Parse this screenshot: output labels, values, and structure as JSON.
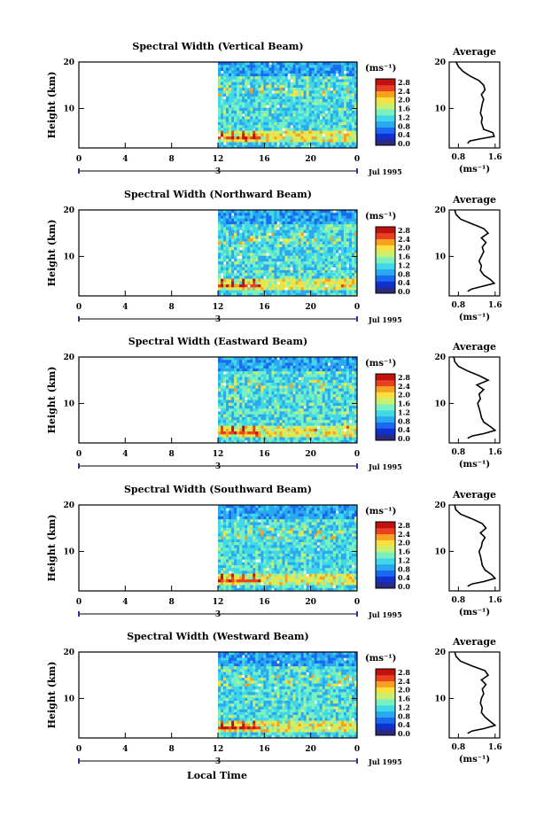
{
  "chart_data": [
    {
      "type": "heatmap",
      "title": "Spectral Width (Vertical Beam)",
      "ylabel": "Height (km)",
      "xticks": [
        "0",
        "4",
        "8",
        "12",
        "16",
        "20",
        "0"
      ],
      "yticks": [
        "20",
        "10"
      ],
      "xlim": [
        0,
        24
      ],
      "ylim": [
        1.5,
        20
      ],
      "data_start_hour": 12,
      "day_label": "3",
      "date_label": "Jul 1995",
      "colorbar": {
        "unit": "(ms⁻¹)",
        "ticks": [
          "2.8",
          "2.4",
          "2.0",
          "1.6",
          "1.2",
          "0.8",
          "0.4",
          "0.0"
        ]
      },
      "profile": {
        "title": "Average",
        "xlabel": "(ms⁻¹)",
        "xticks": [
          "0.8",
          "1.6"
        ],
        "yticks": [
          "20",
          "10"
        ],
        "xlim": [
          0.6,
          1.7
        ],
        "points": [
          [
            1.0,
            2.5
          ],
          [
            1.05,
            3.0
          ],
          [
            1.25,
            3.4
          ],
          [
            1.58,
            4.0
          ],
          [
            1.55,
            4.8
          ],
          [
            1.35,
            5.5
          ],
          [
            1.3,
            7
          ],
          [
            1.32,
            8
          ],
          [
            1.28,
            9
          ],
          [
            1.3,
            10
          ],
          [
            1.32,
            11
          ],
          [
            1.35,
            12
          ],
          [
            1.3,
            13
          ],
          [
            1.38,
            14
          ],
          [
            1.35,
            15
          ],
          [
            1.25,
            16
          ],
          [
            1.05,
            17
          ],
          [
            0.9,
            18
          ],
          [
            0.8,
            19
          ],
          [
            0.75,
            20
          ]
        ]
      }
    },
    {
      "type": "heatmap",
      "title": "Spectral Width (Northward Beam)",
      "ylabel": "Height (km)",
      "xticks": [
        "0",
        "4",
        "8",
        "12",
        "16",
        "20",
        "0"
      ],
      "yticks": [
        "20",
        "10"
      ],
      "xlim": [
        0,
        24
      ],
      "ylim": [
        1.5,
        20
      ],
      "data_start_hour": 12,
      "day_label": "3",
      "date_label": "Jul 1995",
      "colorbar": {
        "unit": "(ms⁻¹)",
        "ticks": [
          "2.8",
          "2.4",
          "2.0",
          "1.6",
          "1.2",
          "0.8",
          "0.4",
          "0.0"
        ]
      },
      "profile": {
        "title": "Average",
        "xlabel": "(ms⁻¹)",
        "xticks": [
          "0.8",
          "1.6"
        ],
        "yticks": [
          "20",
          "10"
        ],
        "xlim": [
          0.6,
          1.7
        ],
        "points": [
          [
            1.0,
            2.5
          ],
          [
            1.1,
            3.0
          ],
          [
            1.3,
            3.5
          ],
          [
            1.58,
            4.2
          ],
          [
            1.5,
            5.0
          ],
          [
            1.35,
            6
          ],
          [
            1.28,
            7
          ],
          [
            1.3,
            8
          ],
          [
            1.25,
            9
          ],
          [
            1.3,
            10
          ],
          [
            1.35,
            11
          ],
          [
            1.32,
            12
          ],
          [
            1.4,
            13
          ],
          [
            1.3,
            14
          ],
          [
            1.45,
            15
          ],
          [
            1.35,
            16
          ],
          [
            1.1,
            17
          ],
          [
            0.85,
            18
          ],
          [
            0.75,
            19
          ],
          [
            0.72,
            20
          ]
        ]
      }
    },
    {
      "type": "heatmap",
      "title": "Spectral Width (Eastward Beam)",
      "ylabel": "Height (km)",
      "xticks": [
        "0",
        "4",
        "8",
        "12",
        "16",
        "20",
        "0"
      ],
      "yticks": [
        "20",
        "10"
      ],
      "xlim": [
        0,
        24
      ],
      "ylim": [
        1.5,
        20
      ],
      "data_start_hour": 12,
      "day_label": "3",
      "date_label": "Jul 1995",
      "colorbar": {
        "unit": "(ms⁻¹)",
        "ticks": [
          "2.8",
          "2.4",
          "2.0",
          "1.6",
          "1.2",
          "0.8",
          "0.4",
          "0.0"
        ]
      },
      "profile": {
        "title": "Average",
        "xlabel": "(ms⁻¹)",
        "xticks": [
          "0.8",
          "1.6"
        ],
        "yticks": [
          "20",
          "10"
        ],
        "xlim": [
          0.6,
          1.7
        ],
        "points": [
          [
            1.0,
            2.5
          ],
          [
            1.1,
            3.0
          ],
          [
            1.35,
            3.5
          ],
          [
            1.6,
            4.2
          ],
          [
            1.5,
            5.0
          ],
          [
            1.35,
            6
          ],
          [
            1.3,
            7
          ],
          [
            1.28,
            8
          ],
          [
            1.25,
            9
          ],
          [
            1.22,
            10
          ],
          [
            1.28,
            11
          ],
          [
            1.25,
            12
          ],
          [
            1.35,
            13
          ],
          [
            1.2,
            14
          ],
          [
            1.45,
            15
          ],
          [
            1.25,
            16
          ],
          [
            1.0,
            17
          ],
          [
            0.8,
            18
          ],
          [
            0.72,
            19
          ],
          [
            0.7,
            20
          ]
        ]
      }
    },
    {
      "type": "heatmap",
      "title": "Spectral Width (Southward Beam)",
      "ylabel": "Height (km)",
      "xticks": [
        "0",
        "4",
        "8",
        "12",
        "16",
        "20",
        "0"
      ],
      "yticks": [
        "20",
        "10"
      ],
      "xlim": [
        0,
        24
      ],
      "ylim": [
        1.5,
        20
      ],
      "data_start_hour": 12,
      "day_label": "3",
      "date_label": "Jul 1995",
      "colorbar": {
        "unit": "(ms⁻¹)",
        "ticks": [
          "2.8",
          "2.4",
          "2.0",
          "1.6",
          "1.2",
          "0.8",
          "0.4",
          "0.0"
        ]
      },
      "profile": {
        "title": "Average",
        "xlabel": "(ms⁻¹)",
        "xticks": [
          "0.8",
          "1.6"
        ],
        "yticks": [
          "20",
          "10"
        ],
        "xlim": [
          0.6,
          1.7
        ],
        "points": [
          [
            1.0,
            2.5
          ],
          [
            1.1,
            3.0
          ],
          [
            1.35,
            3.5
          ],
          [
            1.6,
            4.2
          ],
          [
            1.52,
            5.0
          ],
          [
            1.38,
            6
          ],
          [
            1.32,
            7
          ],
          [
            1.3,
            8
          ],
          [
            1.28,
            9
          ],
          [
            1.25,
            10
          ],
          [
            1.3,
            11
          ],
          [
            1.32,
            12
          ],
          [
            1.38,
            13
          ],
          [
            1.28,
            14
          ],
          [
            1.4,
            15
          ],
          [
            1.32,
            16
          ],
          [
            1.1,
            17
          ],
          [
            0.85,
            18
          ],
          [
            0.74,
            19
          ],
          [
            0.72,
            20
          ]
        ]
      }
    },
    {
      "type": "heatmap",
      "title": "Spectral Width (Westward Beam)",
      "ylabel": "Height (km)",
      "xticks": [
        "0",
        "4",
        "8",
        "12",
        "16",
        "20",
        "0"
      ],
      "yticks": [
        "20",
        "10"
      ],
      "xlim": [
        0,
        24
      ],
      "ylim": [
        1.5,
        20
      ],
      "data_start_hour": 12,
      "day_label": "3",
      "date_label": "Jul 1995",
      "colorbar": {
        "unit": "(ms⁻¹)",
        "ticks": [
          "2.8",
          "2.4",
          "2.0",
          "1.6",
          "1.2",
          "0.8",
          "0.4",
          "0.0"
        ]
      },
      "profile": {
        "title": "Average",
        "xlabel": "(ms⁻¹)",
        "xticks": [
          "0.8",
          "1.6"
        ],
        "yticks": [
          "20",
          "10"
        ],
        "xlim": [
          0.6,
          1.7
        ],
        "points": [
          [
            1.0,
            2.5
          ],
          [
            1.1,
            3.0
          ],
          [
            1.35,
            3.5
          ],
          [
            1.6,
            4.2
          ],
          [
            1.5,
            5.0
          ],
          [
            1.38,
            6
          ],
          [
            1.3,
            7
          ],
          [
            1.32,
            8
          ],
          [
            1.28,
            9
          ],
          [
            1.3,
            10
          ],
          [
            1.35,
            11
          ],
          [
            1.32,
            12
          ],
          [
            1.4,
            13
          ],
          [
            1.3,
            14
          ],
          [
            1.45,
            15
          ],
          [
            1.38,
            16
          ],
          [
            1.1,
            17
          ],
          [
            0.85,
            18
          ],
          [
            0.75,
            19
          ],
          [
            0.72,
            20
          ]
        ]
      }
    }
  ],
  "xlabel": "Local Time",
  "colors": {
    "colormap": [
      "#2a2a80",
      "#1030d0",
      "#1a6af0",
      "#2aa8f0",
      "#40d8e8",
      "#78f0c0",
      "#c8f070",
      "#f8e040",
      "#f8a020",
      "#e84020",
      "#c01010"
    ]
  }
}
